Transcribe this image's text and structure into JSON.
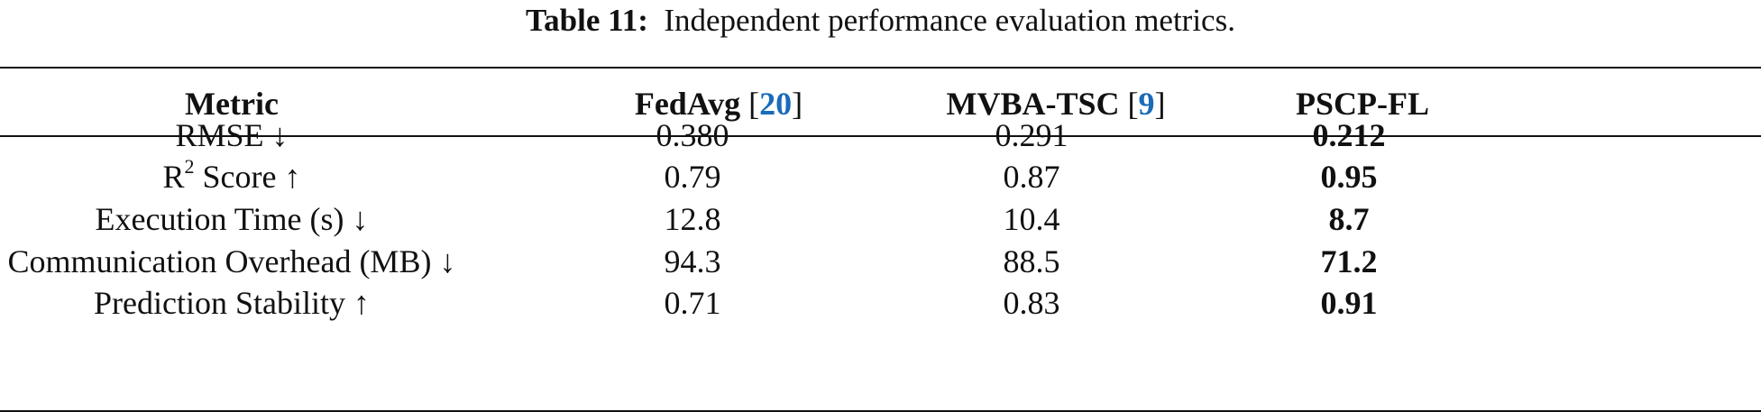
{
  "caption": {
    "label": "Table 11:",
    "text": "Independent performance evaluation metrics."
  },
  "table": {
    "headers": {
      "metric": "Metric",
      "fedavg": "FedAvg",
      "fedavg_ref": "20",
      "mvba": "MVBA-TSC",
      "mvba_ref": "9",
      "pscp": "PSCP-FL"
    },
    "rows": [
      {
        "metric": "RMSE ↓",
        "fedavg": "0.380",
        "mvba": "0.291",
        "pscp": "0.212"
      },
      {
        "metric_prefix": "R",
        "metric_sup": "2",
        "metric_suffix": " Score ↑",
        "fedavg": "0.79",
        "mvba": "0.87",
        "pscp": "0.95"
      },
      {
        "metric": "Execution Time (s) ↓",
        "fedavg": "12.8",
        "mvba": "10.4",
        "pscp": "8.7"
      },
      {
        "metric": "Communication Overhead (MB) ↓",
        "fedavg": "94.3",
        "mvba": "88.5",
        "pscp": "71.2"
      },
      {
        "metric": "Prediction Stability ↑",
        "fedavg": "0.71",
        "mvba": "0.83",
        "pscp": "0.91"
      }
    ]
  },
  "colors": {
    "text": "#111111",
    "reference_link": "#1a6bb8",
    "background": "#ffffff"
  }
}
